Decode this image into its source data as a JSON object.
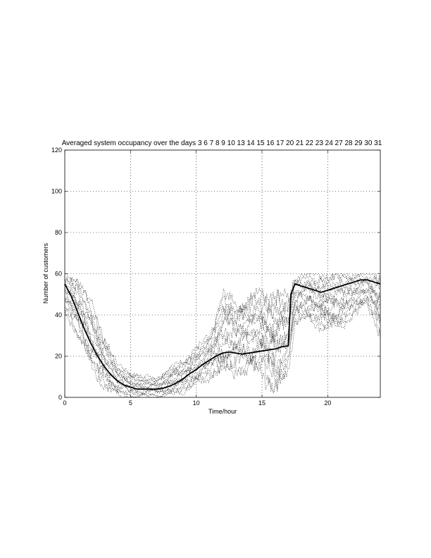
{
  "chart_data": {
    "type": "line",
    "title": "Averaged system occupancy over the days 3 6 7 8 9 10 13 14 15 16 17 20 21 22 23 24 27 28 29 30 31",
    "xlabel": "Time/hour",
    "ylabel": "Number of customers",
    "xlim": [
      0,
      24
    ],
    "ylim": [
      0,
      120
    ],
    "xticks": [
      0,
      5,
      10,
      15,
      20
    ],
    "yticks": [
      0,
      20,
      40,
      60,
      80,
      100,
      120
    ],
    "grid": true,
    "series": [
      {
        "style": "solid",
        "color": "#000000",
        "x": [
          0,
          0.5,
          1,
          1.5,
          2,
          2.5,
          3,
          3.5,
          4,
          4.5,
          5,
          5.5,
          6,
          6.5,
          7,
          7.5,
          8,
          8.5,
          9,
          9.5,
          10,
          10.5,
          11,
          11.5,
          12,
          12.5,
          13,
          13.5,
          14,
          14.5,
          15,
          15.5,
          16,
          16.5,
          17,
          17.2,
          17.5,
          18,
          18.5,
          19,
          19.5,
          20,
          20.5,
          21,
          21.5,
          22,
          22.5,
          23,
          23.5,
          24
        ],
        "y": [
          55,
          49,
          41,
          33,
          26,
          20,
          15,
          11,
          8,
          6,
          5,
          4,
          4,
          4,
          4,
          4.5,
          5.5,
          7,
          9,
          11.5,
          13.5,
          16,
          18,
          20,
          21.5,
          22,
          21.5,
          21,
          21.5,
          22,
          22.5,
          23,
          23.5,
          24.5,
          25,
          50,
          55,
          54,
          53,
          52,
          51,
          52,
          53,
          54,
          55,
          56,
          57,
          57,
          56,
          55
        ]
      }
    ],
    "scatter_band": {
      "style": "dotted",
      "description_points": [
        [
          0,
          42,
          60
        ],
        [
          1,
          30,
          58
        ],
        [
          2,
          15,
          45
        ],
        [
          3,
          5,
          30
        ],
        [
          4,
          1,
          16
        ],
        [
          5,
          0,
          12
        ],
        [
          6,
          0,
          10
        ],
        [
          7,
          0,
          10
        ],
        [
          8,
          1,
          14
        ],
        [
          9,
          3,
          18
        ],
        [
          10,
          6,
          24
        ],
        [
          11,
          10,
          30
        ],
        [
          12,
          12,
          50
        ],
        [
          13,
          12,
          46
        ],
        [
          14,
          12,
          48
        ],
        [
          15,
          12,
          52
        ],
        [
          16,
          1,
          50
        ],
        [
          17,
          12,
          48
        ],
        [
          17.5,
          36,
          60
        ],
        [
          18,
          38,
          60
        ],
        [
          19,
          36,
          60
        ],
        [
          20,
          33,
          60
        ],
        [
          21,
          34,
          60
        ],
        [
          22,
          40,
          60
        ],
        [
          23,
          45,
          60
        ],
        [
          24,
          30,
          60
        ]
      ]
    }
  }
}
